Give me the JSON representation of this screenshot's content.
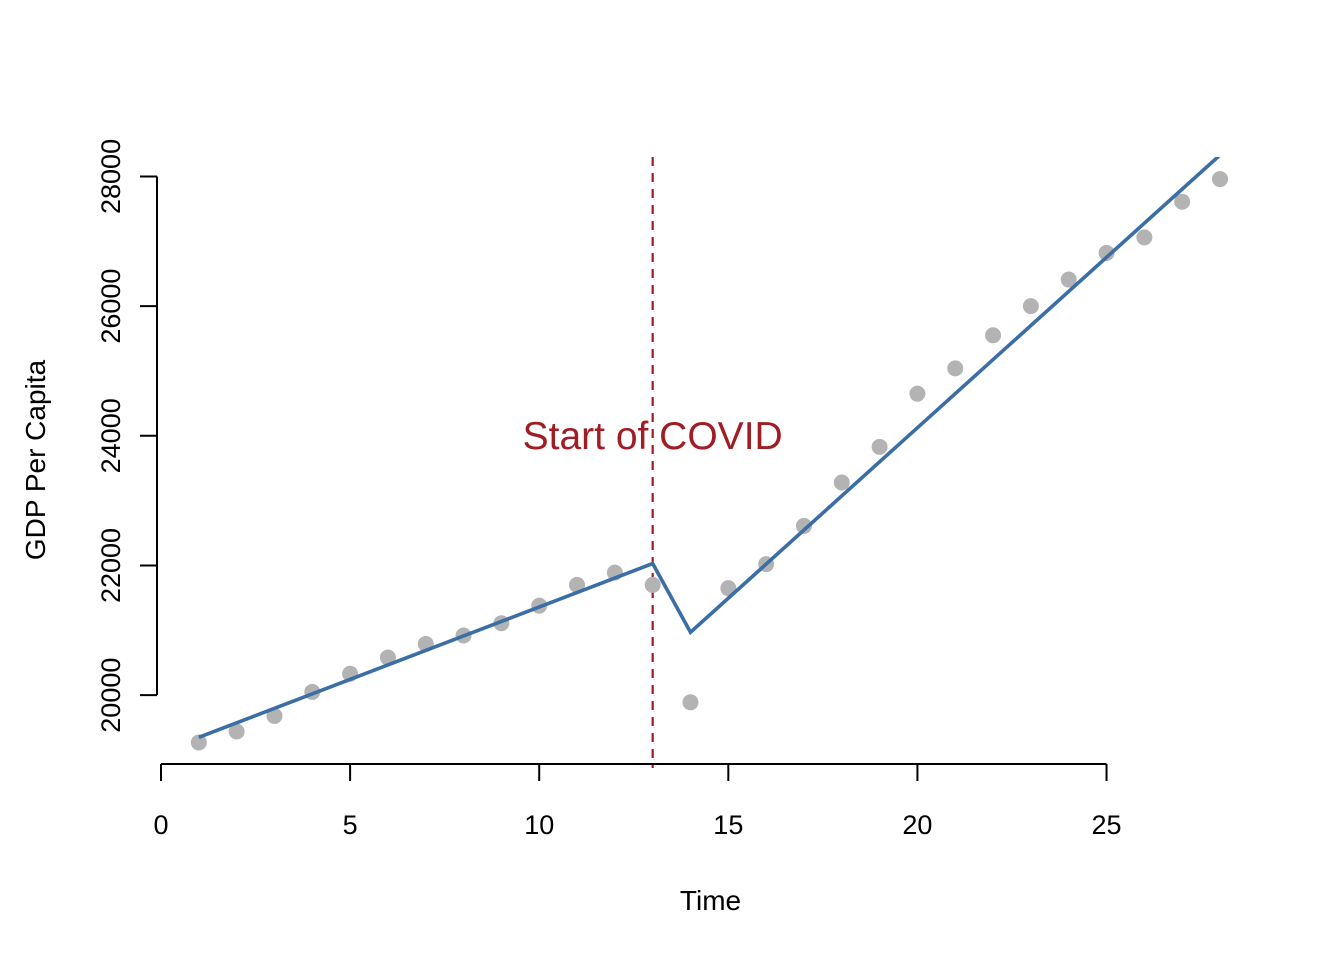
{
  "chart_data": {
    "type": "scatter",
    "xlabel": "Time",
    "ylabel": "GDP Per Capita",
    "xlim": [
      0,
      28
    ],
    "ylim": [
      19000,
      28300
    ],
    "x_ticks": [
      0,
      5,
      10,
      15,
      20,
      25
    ],
    "y_ticks": [
      20000,
      22000,
      24000,
      26000,
      28000
    ],
    "grid": false,
    "points": {
      "color": "#b3b3b3",
      "x": [
        1,
        2,
        3,
        4,
        5,
        6,
        7,
        8,
        9,
        10,
        11,
        12,
        13,
        14,
        15,
        16,
        17,
        18,
        19,
        20,
        21,
        22,
        23,
        24,
        25,
        26,
        27,
        28
      ],
      "y": [
        19270,
        19440,
        19680,
        20050,
        20330,
        20580,
        20790,
        20920,
        21110,
        21380,
        21700,
        21890,
        21700,
        19890,
        21650,
        22020,
        22610,
        23280,
        23830,
        24650,
        25040,
        25550,
        26000,
        26410,
        26820,
        27060,
        27610,
        27960
      ]
    },
    "fit_line": {
      "color": "#3a6ea5",
      "x": [
        1,
        13,
        14,
        28
      ],
      "y": [
        19350,
        22030,
        20970,
        28330
      ]
    },
    "vline": {
      "x": 13,
      "color": "#a11d24",
      "style": "dashed"
    },
    "annotation": {
      "text": "Start of COVID",
      "x": 13,
      "y": 24000,
      "color": "#a11d24"
    }
  }
}
